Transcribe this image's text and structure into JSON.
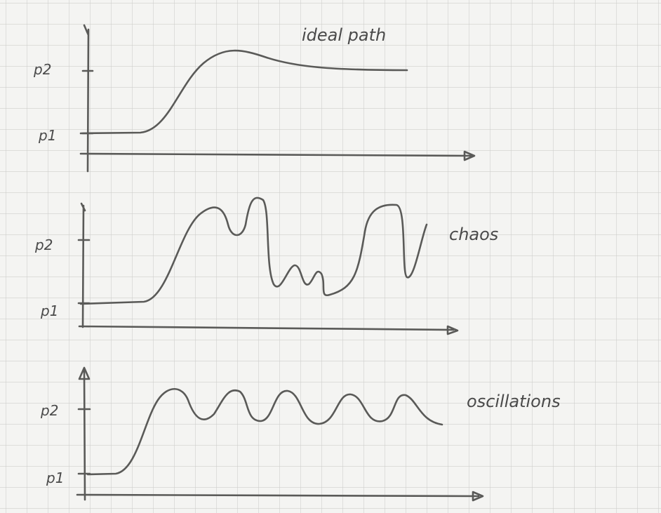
{
  "panels": [
    {
      "label": "ideal path",
      "levels": [
        "p2",
        "p1"
      ]
    },
    {
      "label": "chaos",
      "levels": [
        "p2",
        "p1"
      ]
    },
    {
      "label": "oscillations",
      "levels": [
        "p2",
        "p1"
      ]
    }
  ]
}
